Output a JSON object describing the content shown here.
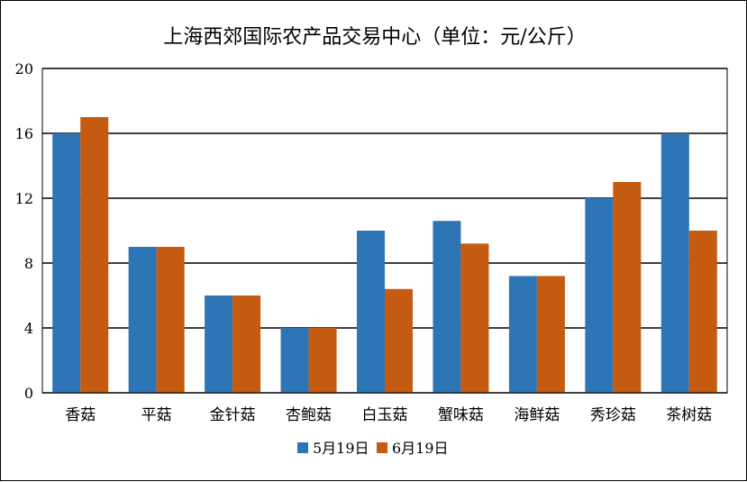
{
  "chart_data": {
    "type": "bar",
    "title": "上海西郊国际农产品交易中心（单位：元/公斤）",
    "categories": [
      "香菇",
      "平菇",
      "金针菇",
      "杏鲍菇",
      "白玉菇",
      "蟹味菇",
      "海鲜菇",
      "秀珍菇",
      "茶树菇"
    ],
    "series": [
      {
        "name": "5月19日",
        "color": "#2E75B6",
        "values": [
          16,
          9,
          6,
          4,
          10,
          10.6,
          7.2,
          12,
          16
        ]
      },
      {
        "name": "6月19日",
        "color": "#C55A11",
        "values": [
          17,
          9,
          6,
          4,
          6.4,
          9.2,
          7.2,
          13,
          10
        ]
      }
    ],
    "ylim": [
      0,
      20
    ],
    "yticks": [
      "0",
      "4",
      "8",
      "12",
      "16",
      "20"
    ],
    "grid": true,
    "legend_position": "bottom"
  }
}
